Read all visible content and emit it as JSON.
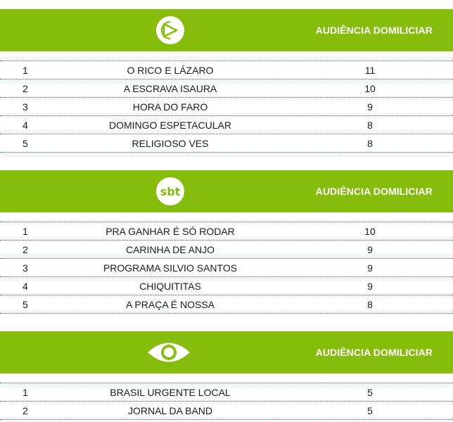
{
  "sections": [
    {
      "network_icon": "record-logo-icon",
      "header": "AUDIÊNCIA DOMILICIAR",
      "rows": [
        {
          "rank": "1",
          "program": "O RICO E LÁZARO",
          "value": "11"
        },
        {
          "rank": "2",
          "program": "A ESCRAVA ISAURA",
          "value": "10"
        },
        {
          "rank": "3",
          "program": "HORA DO FARO",
          "value": "9"
        },
        {
          "rank": "4",
          "program": "DOMINGO ESPETACULAR",
          "value": "8"
        },
        {
          "rank": "5",
          "program": "RELIGIOSO VES",
          "value": "8"
        }
      ]
    },
    {
      "network_icon": "sbt-logo-icon",
      "header": "AUDIÊNCIA DOMILICIAR",
      "logo_text": "sbt",
      "rows": [
        {
          "rank": "1",
          "program": "PRA GANHAR É SÓ RODAR",
          "value": "10"
        },
        {
          "rank": "2",
          "program": "CARINHA DE ANJO",
          "value": "9"
        },
        {
          "rank": "3",
          "program": "PROGRAMA SILVIO SANTOS",
          "value": "9"
        },
        {
          "rank": "4",
          "program": "CHIQUITITAS",
          "value": "9"
        },
        {
          "rank": "5",
          "program": "A PRAÇA É NOSSA",
          "value": "8"
        }
      ]
    },
    {
      "network_icon": "band-eye-logo-icon",
      "header": "AUDIÊNCIA DOMILICIAR",
      "rows": [
        {
          "rank": "1",
          "program": "BRASIL URGENTE LOCAL",
          "value": "5"
        },
        {
          "rank": "2",
          "program": "JORNAL DA BAND",
          "value": "5"
        }
      ]
    }
  ],
  "colors": {
    "header_green": "#86bd0d",
    "text": "#1a1a1a",
    "dotted_line": "#2c5f8f",
    "header_text": "#ffffff"
  }
}
